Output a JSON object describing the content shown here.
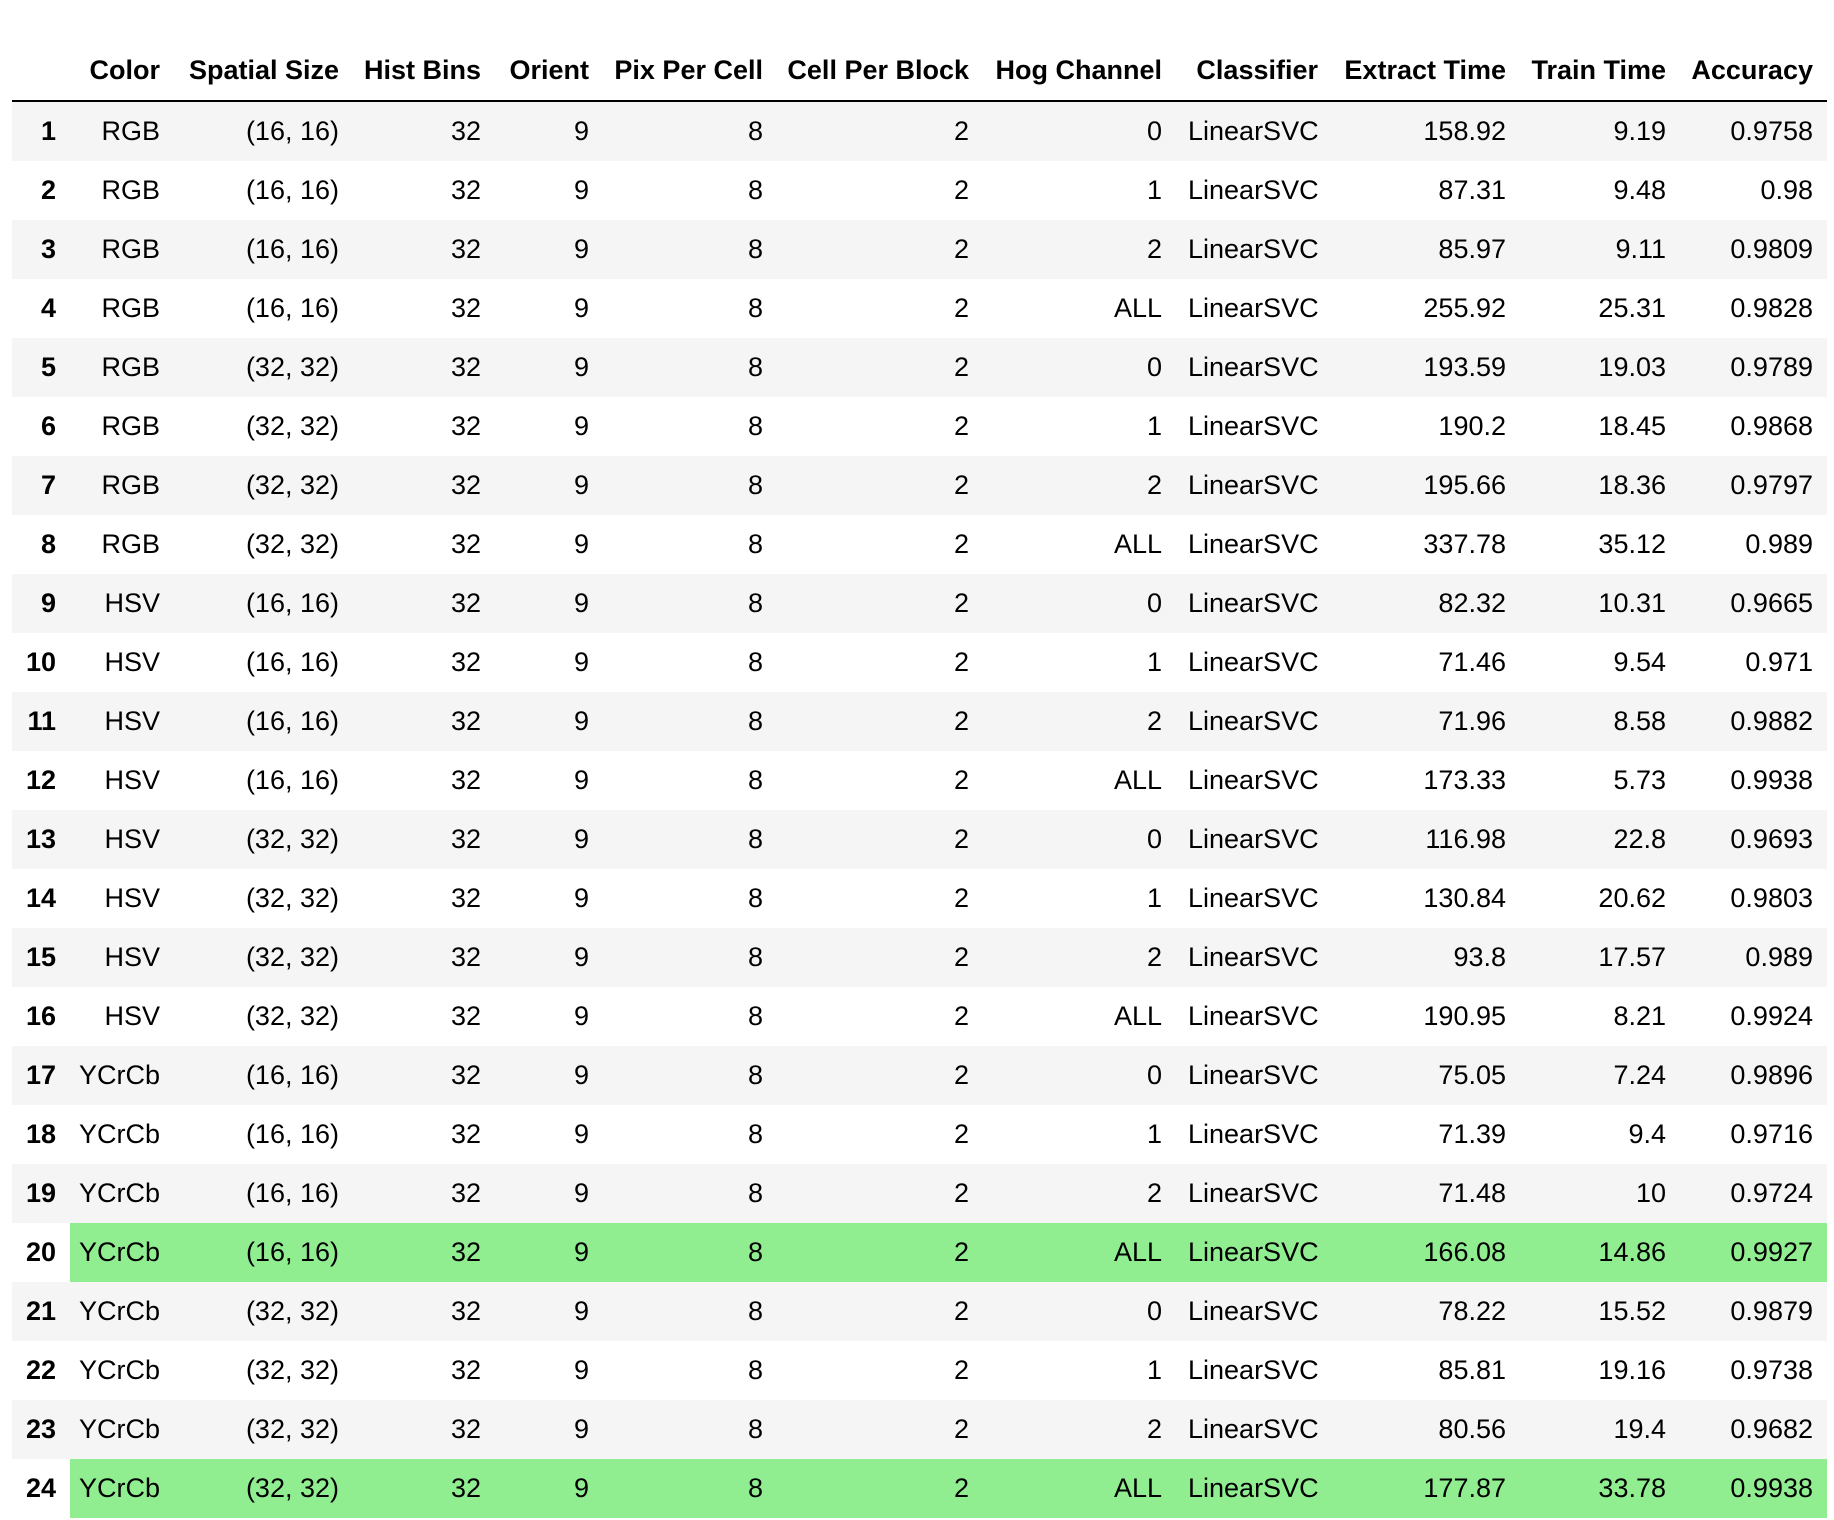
{
  "table": {
    "headers": [
      "",
      "Color",
      "Spatial Size",
      "Hist Bins",
      "Orient",
      "Pix Per Cell",
      "Cell Per Block",
      "Hog Channel",
      "Classifier",
      "Extract Time",
      "Train Time",
      "Accuracy"
    ],
    "highlight_color": "#90ee90",
    "stripe_color": "#f5f5f5",
    "rows": [
      {
        "index": "1",
        "cells": [
          "RGB",
          "(16, 16)",
          "32",
          "9",
          "8",
          "2",
          "0",
          "LinearSVC",
          "158.92",
          "9.19",
          "0.9758"
        ],
        "highlight": false
      },
      {
        "index": "2",
        "cells": [
          "RGB",
          "(16, 16)",
          "32",
          "9",
          "8",
          "2",
          "1",
          "LinearSVC",
          "87.31",
          "9.48",
          "0.98"
        ],
        "highlight": false
      },
      {
        "index": "3",
        "cells": [
          "RGB",
          "(16, 16)",
          "32",
          "9",
          "8",
          "2",
          "2",
          "LinearSVC",
          "85.97",
          "9.11",
          "0.9809"
        ],
        "highlight": false
      },
      {
        "index": "4",
        "cells": [
          "RGB",
          "(16, 16)",
          "32",
          "9",
          "8",
          "2",
          "ALL",
          "LinearSVC",
          "255.92",
          "25.31",
          "0.9828"
        ],
        "highlight": false
      },
      {
        "index": "5",
        "cells": [
          "RGB",
          "(32, 32)",
          "32",
          "9",
          "8",
          "2",
          "0",
          "LinearSVC",
          "193.59",
          "19.03",
          "0.9789"
        ],
        "highlight": false
      },
      {
        "index": "6",
        "cells": [
          "RGB",
          "(32, 32)",
          "32",
          "9",
          "8",
          "2",
          "1",
          "LinearSVC",
          "190.2",
          "18.45",
          "0.9868"
        ],
        "highlight": false
      },
      {
        "index": "7",
        "cells": [
          "RGB",
          "(32, 32)",
          "32",
          "9",
          "8",
          "2",
          "2",
          "LinearSVC",
          "195.66",
          "18.36",
          "0.9797"
        ],
        "highlight": false
      },
      {
        "index": "8",
        "cells": [
          "RGB",
          "(32, 32)",
          "32",
          "9",
          "8",
          "2",
          "ALL",
          "LinearSVC",
          "337.78",
          "35.12",
          "0.989"
        ],
        "highlight": false
      },
      {
        "index": "9",
        "cells": [
          "HSV",
          "(16, 16)",
          "32",
          "9",
          "8",
          "2",
          "0",
          "LinearSVC",
          "82.32",
          "10.31",
          "0.9665"
        ],
        "highlight": false
      },
      {
        "index": "10",
        "cells": [
          "HSV",
          "(16, 16)",
          "32",
          "9",
          "8",
          "2",
          "1",
          "LinearSVC",
          "71.46",
          "9.54",
          "0.971"
        ],
        "highlight": false
      },
      {
        "index": "11",
        "cells": [
          "HSV",
          "(16, 16)",
          "32",
          "9",
          "8",
          "2",
          "2",
          "LinearSVC",
          "71.96",
          "8.58",
          "0.9882"
        ],
        "highlight": false
      },
      {
        "index": "12",
        "cells": [
          "HSV",
          "(16, 16)",
          "32",
          "9",
          "8",
          "2",
          "ALL",
          "LinearSVC",
          "173.33",
          "5.73",
          "0.9938"
        ],
        "highlight": false
      },
      {
        "index": "13",
        "cells": [
          "HSV",
          "(32, 32)",
          "32",
          "9",
          "8",
          "2",
          "0",
          "LinearSVC",
          "116.98",
          "22.8",
          "0.9693"
        ],
        "highlight": false
      },
      {
        "index": "14",
        "cells": [
          "HSV",
          "(32, 32)",
          "32",
          "9",
          "8",
          "2",
          "1",
          "LinearSVC",
          "130.84",
          "20.62",
          "0.9803"
        ],
        "highlight": false
      },
      {
        "index": "15",
        "cells": [
          "HSV",
          "(32, 32)",
          "32",
          "9",
          "8",
          "2",
          "2",
          "LinearSVC",
          "93.8",
          "17.57",
          "0.989"
        ],
        "highlight": false
      },
      {
        "index": "16",
        "cells": [
          "HSV",
          "(32, 32)",
          "32",
          "9",
          "8",
          "2",
          "ALL",
          "LinearSVC",
          "190.95",
          "8.21",
          "0.9924"
        ],
        "highlight": false
      },
      {
        "index": "17",
        "cells": [
          "YCrCb",
          "(16, 16)",
          "32",
          "9",
          "8",
          "2",
          "0",
          "LinearSVC",
          "75.05",
          "7.24",
          "0.9896"
        ],
        "highlight": false
      },
      {
        "index": "18",
        "cells": [
          "YCrCb",
          "(16, 16)",
          "32",
          "9",
          "8",
          "2",
          "1",
          "LinearSVC",
          "71.39",
          "9.4",
          "0.9716"
        ],
        "highlight": false
      },
      {
        "index": "19",
        "cells": [
          "YCrCb",
          "(16, 16)",
          "32",
          "9",
          "8",
          "2",
          "2",
          "LinearSVC",
          "71.48",
          "10",
          "0.9724"
        ],
        "highlight": false
      },
      {
        "index": "20",
        "cells": [
          "YCrCb",
          "(16, 16)",
          "32",
          "9",
          "8",
          "2",
          "ALL",
          "LinearSVC",
          "166.08",
          "14.86",
          "0.9927"
        ],
        "highlight": true
      },
      {
        "index": "21",
        "cells": [
          "YCrCb",
          "(32, 32)",
          "32",
          "9",
          "8",
          "2",
          "0",
          "LinearSVC",
          "78.22",
          "15.52",
          "0.9879"
        ],
        "highlight": false
      },
      {
        "index": "22",
        "cells": [
          "YCrCb",
          "(32, 32)",
          "32",
          "9",
          "8",
          "2",
          "1",
          "LinearSVC",
          "85.81",
          "19.16",
          "0.9738"
        ],
        "highlight": false
      },
      {
        "index": "23",
        "cells": [
          "YCrCb",
          "(32, 32)",
          "32",
          "9",
          "8",
          "2",
          "2",
          "LinearSVC",
          "80.56",
          "19.4",
          "0.9682"
        ],
        "highlight": false
      },
      {
        "index": "24",
        "cells": [
          "YCrCb",
          "(32, 32)",
          "32",
          "9",
          "8",
          "2",
          "ALL",
          "LinearSVC",
          "177.87",
          "33.78",
          "0.9938"
        ],
        "highlight": true
      }
    ]
  }
}
